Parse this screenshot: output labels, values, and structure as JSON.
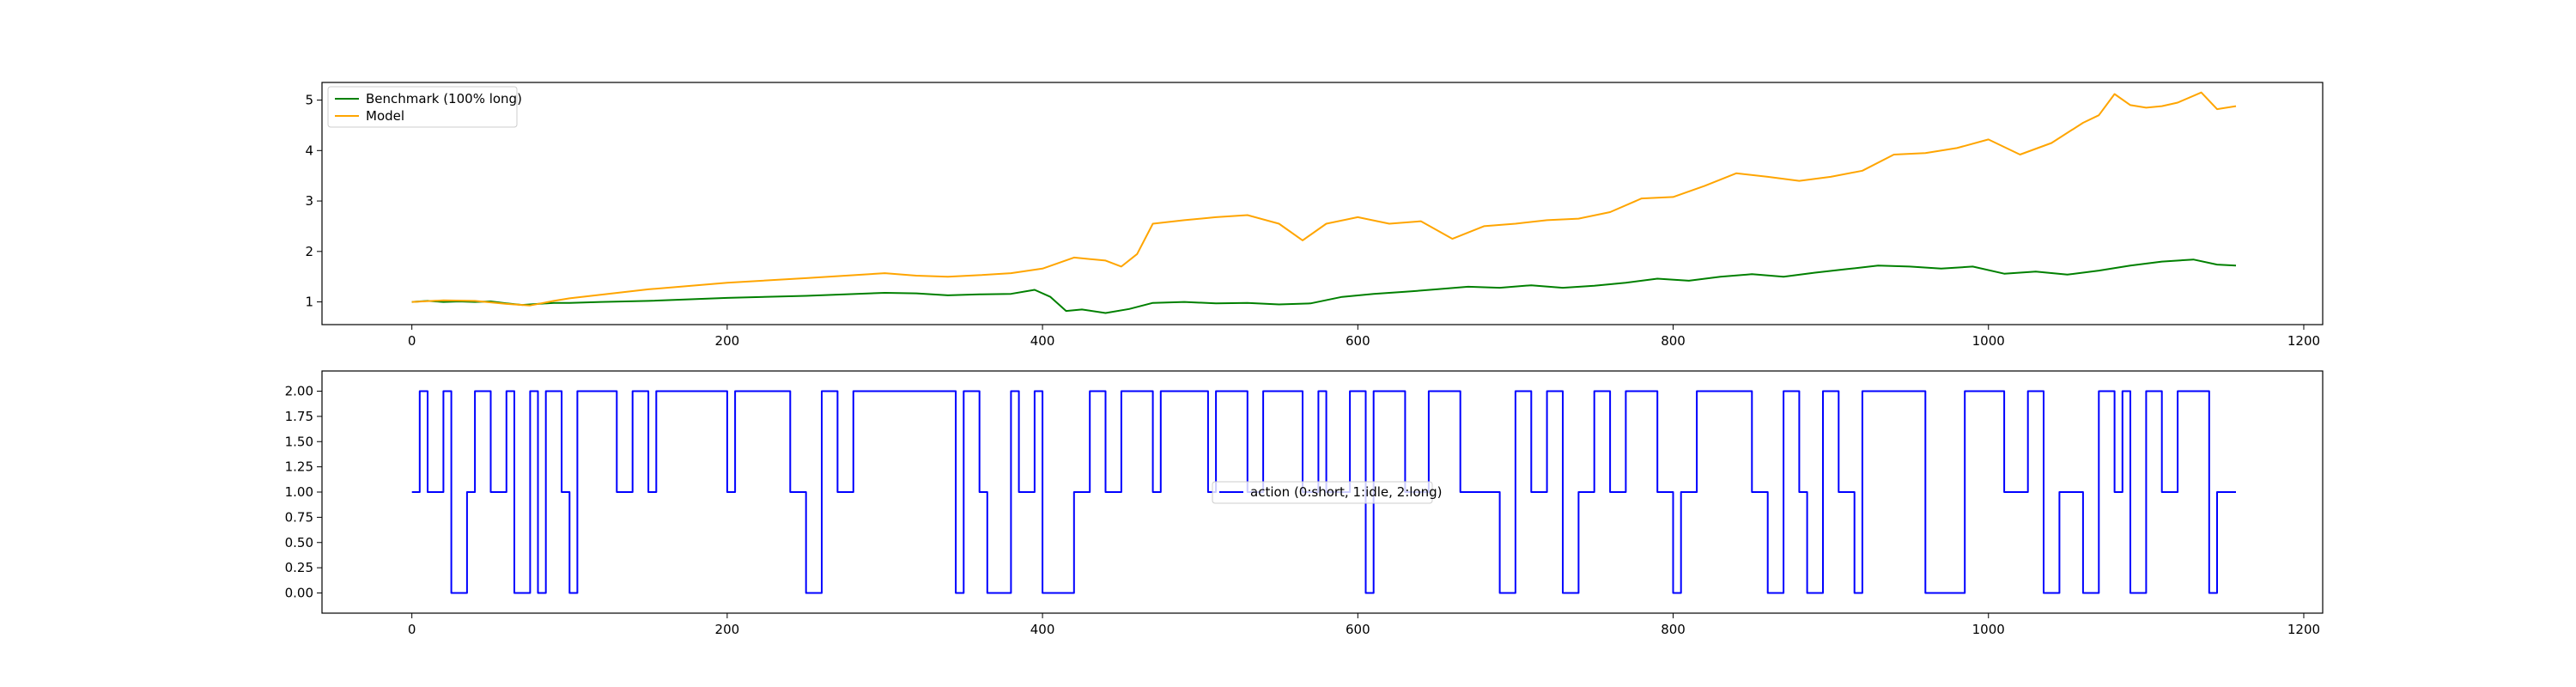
{
  "chart_data": [
    {
      "type": "line",
      "title": "",
      "xlabel": "",
      "ylabel": "",
      "xlim": [
        -57,
        1212
      ],
      "ylim": [
        0.55,
        5.35
      ],
      "grid": false,
      "legend": "upper-left",
      "xticks": [
        0,
        200,
        400,
        600,
        800,
        1000,
        1200
      ],
      "yticks": [
        1,
        2,
        3,
        4,
        5
      ],
      "series": [
        {
          "name": "Benchmark (100% long)",
          "color": "#008000",
          "points": [
            [
              0,
              1.0
            ],
            [
              10,
              1.02
            ],
            [
              20,
              1.0
            ],
            [
              30,
              1.01
            ],
            [
              40,
              1.0
            ],
            [
              50,
              1.01
            ],
            [
              60,
              0.97
            ],
            [
              70,
              0.94
            ],
            [
              80,
              0.96
            ],
            [
              90,
              0.98
            ],
            [
              100,
              0.98
            ],
            [
              120,
              1.0
            ],
            [
              150,
              1.02
            ],
            [
              200,
              1.08
            ],
            [
              250,
              1.12
            ],
            [
              300,
              1.18
            ],
            [
              320,
              1.17
            ],
            [
              340,
              1.13
            ],
            [
              360,
              1.15
            ],
            [
              380,
              1.16
            ],
            [
              395,
              1.24
            ],
            [
              405,
              1.1
            ],
            [
              415,
              0.82
            ],
            [
              425,
              0.85
            ],
            [
              440,
              0.78
            ],
            [
              455,
              0.86
            ],
            [
              470,
              0.98
            ],
            [
              490,
              1.0
            ],
            [
              510,
              0.97
            ],
            [
              530,
              0.98
            ],
            [
              550,
              0.95
            ],
            [
              570,
              0.97
            ],
            [
              590,
              1.1
            ],
            [
              610,
              1.16
            ],
            [
              630,
              1.2
            ],
            [
              650,
              1.25
            ],
            [
              670,
              1.3
            ],
            [
              690,
              1.28
            ],
            [
              710,
              1.33
            ],
            [
              730,
              1.28
            ],
            [
              750,
              1.32
            ],
            [
              770,
              1.38
            ],
            [
              790,
              1.46
            ],
            [
              810,
              1.42
            ],
            [
              830,
              1.5
            ],
            [
              850,
              1.55
            ],
            [
              870,
              1.5
            ],
            [
              890,
              1.58
            ],
            [
              910,
              1.65
            ],
            [
              930,
              1.72
            ],
            [
              950,
              1.7
            ],
            [
              970,
              1.66
            ],
            [
              990,
              1.7
            ],
            [
              1010,
              1.56
            ],
            [
              1030,
              1.6
            ],
            [
              1050,
              1.54
            ],
            [
              1070,
              1.62
            ],
            [
              1090,
              1.72
            ],
            [
              1110,
              1.8
            ],
            [
              1130,
              1.84
            ],
            [
              1145,
              1.74
            ],
            [
              1157,
              1.72
            ]
          ]
        },
        {
          "name": "Model",
          "color": "#ffa500",
          "points": [
            [
              0,
              1.0
            ],
            [
              20,
              1.03
            ],
            [
              40,
              1.02
            ],
            [
              60,
              0.96
            ],
            [
              75,
              0.93
            ],
            [
              90,
              1.02
            ],
            [
              100,
              1.07
            ],
            [
              150,
              1.25
            ],
            [
              200,
              1.38
            ],
            [
              250,
              1.47
            ],
            [
              300,
              1.57
            ],
            [
              320,
              1.52
            ],
            [
              340,
              1.5
            ],
            [
              360,
              1.53
            ],
            [
              380,
              1.57
            ],
            [
              400,
              1.66
            ],
            [
              420,
              1.88
            ],
            [
              440,
              1.82
            ],
            [
              450,
              1.7
            ],
            [
              460,
              1.95
            ],
            [
              470,
              2.55
            ],
            [
              490,
              2.62
            ],
            [
              510,
              2.68
            ],
            [
              530,
              2.72
            ],
            [
              550,
              2.55
            ],
            [
              565,
              2.22
            ],
            [
              580,
              2.55
            ],
            [
              600,
              2.68
            ],
            [
              620,
              2.55
            ],
            [
              640,
              2.6
            ],
            [
              660,
              2.25
            ],
            [
              680,
              2.5
            ],
            [
              700,
              2.55
            ],
            [
              720,
              2.62
            ],
            [
              740,
              2.65
            ],
            [
              760,
              2.78
            ],
            [
              780,
              3.05
            ],
            [
              800,
              3.08
            ],
            [
              820,
              3.3
            ],
            [
              840,
              3.55
            ],
            [
              860,
              3.48
            ],
            [
              880,
              3.4
            ],
            [
              900,
              3.48
            ],
            [
              920,
              3.6
            ],
            [
              940,
              3.92
            ],
            [
              960,
              3.95
            ],
            [
              980,
              4.05
            ],
            [
              1000,
              4.22
            ],
            [
              1020,
              3.92
            ],
            [
              1040,
              4.15
            ],
            [
              1060,
              4.55
            ],
            [
              1070,
              4.7
            ],
            [
              1080,
              5.12
            ],
            [
              1090,
              4.9
            ],
            [
              1100,
              4.85
            ],
            [
              1110,
              4.88
            ],
            [
              1120,
              4.95
            ],
            [
              1135,
              5.15
            ],
            [
              1145,
              4.82
            ],
            [
              1157,
              4.88
            ]
          ]
        }
      ]
    },
    {
      "type": "line",
      "title": "",
      "xlabel": "",
      "ylabel": "",
      "xlim": [
        -57,
        1212
      ],
      "ylim": [
        -0.2,
        2.2
      ],
      "grid": false,
      "legend": "center",
      "xticks": [
        0,
        200,
        400,
        600,
        800,
        1000,
        1200
      ],
      "yticks": [
        "0.00",
        "0.25",
        "0.50",
        "0.75",
        "1.00",
        "1.25",
        "1.50",
        "1.75",
        "2.00"
      ],
      "series": [
        {
          "name": "action (0:short, 1:idle, 2:long)",
          "color": "#0000ff",
          "step_values": [
            [
              0,
              1
            ],
            [
              5,
              2
            ],
            [
              10,
              1
            ],
            [
              20,
              2
            ],
            [
              25,
              0
            ],
            [
              30,
              0
            ],
            [
              35,
              1
            ],
            [
              40,
              2
            ],
            [
              50,
              1
            ],
            [
              60,
              2
            ],
            [
              65,
              0
            ],
            [
              75,
              2
            ],
            [
              80,
              0
            ],
            [
              85,
              2
            ],
            [
              95,
              1
            ],
            [
              100,
              0
            ],
            [
              105,
              2
            ],
            [
              115,
              2
            ],
            [
              130,
              1
            ],
            [
              140,
              2
            ],
            [
              150,
              1
            ],
            [
              155,
              2
            ],
            [
              200,
              1
            ],
            [
              205,
              2
            ],
            [
              240,
              1
            ],
            [
              250,
              0
            ],
            [
              260,
              2
            ],
            [
              270,
              1
            ],
            [
              280,
              2
            ],
            [
              290,
              2
            ],
            [
              345,
              0
            ],
            [
              350,
              2
            ],
            [
              360,
              1
            ],
            [
              365,
              0
            ],
            [
              380,
              2
            ],
            [
              385,
              1
            ],
            [
              395,
              2
            ],
            [
              400,
              0
            ],
            [
              415,
              0
            ],
            [
              420,
              1
            ],
            [
              430,
              2
            ],
            [
              440,
              1
            ],
            [
              450,
              2
            ],
            [
              460,
              2
            ],
            [
              470,
              1
            ],
            [
              475,
              2
            ],
            [
              480,
              2
            ],
            [
              500,
              2
            ],
            [
              505,
              1
            ],
            [
              510,
              2
            ],
            [
              530,
              1
            ],
            [
              540,
              2
            ],
            [
              555,
              2
            ],
            [
              565,
              1
            ],
            [
              575,
              2
            ],
            [
              580,
              1
            ],
            [
              595,
              2
            ],
            [
              605,
              0
            ],
            [
              610,
              2
            ],
            [
              630,
              1
            ],
            [
              645,
              2
            ],
            [
              655,
              2
            ],
            [
              665,
              1
            ],
            [
              690,
              0
            ],
            [
              700,
              2
            ],
            [
              710,
              1
            ],
            [
              720,
              2
            ],
            [
              730,
              0
            ],
            [
              740,
              1
            ],
            [
              750,
              2
            ],
            [
              760,
              1
            ],
            [
              770,
              2
            ],
            [
              790,
              1
            ],
            [
              800,
              0
            ],
            [
              805,
              1
            ],
            [
              815,
              2
            ],
            [
              830,
              2
            ],
            [
              850,
              1
            ],
            [
              860,
              0
            ],
            [
              870,
              2
            ],
            [
              880,
              1
            ],
            [
              885,
              0
            ],
            [
              895,
              2
            ],
            [
              905,
              1
            ],
            [
              915,
              0
            ],
            [
              920,
              2
            ],
            [
              945,
              2
            ],
            [
              960,
              0
            ],
            [
              975,
              0
            ],
            [
              985,
              2
            ],
            [
              1010,
              1
            ],
            [
              1025,
              2
            ],
            [
              1035,
              0
            ],
            [
              1045,
              1
            ],
            [
              1060,
              0
            ],
            [
              1070,
              2
            ],
            [
              1080,
              1
            ],
            [
              1085,
              2
            ],
            [
              1090,
              0
            ],
            [
              1100,
              2
            ],
            [
              1110,
              1
            ],
            [
              1120,
              2
            ],
            [
              1130,
              2
            ],
            [
              1140,
              0
            ],
            [
              1145,
              1
            ],
            [
              1157,
              1
            ]
          ]
        }
      ]
    }
  ]
}
